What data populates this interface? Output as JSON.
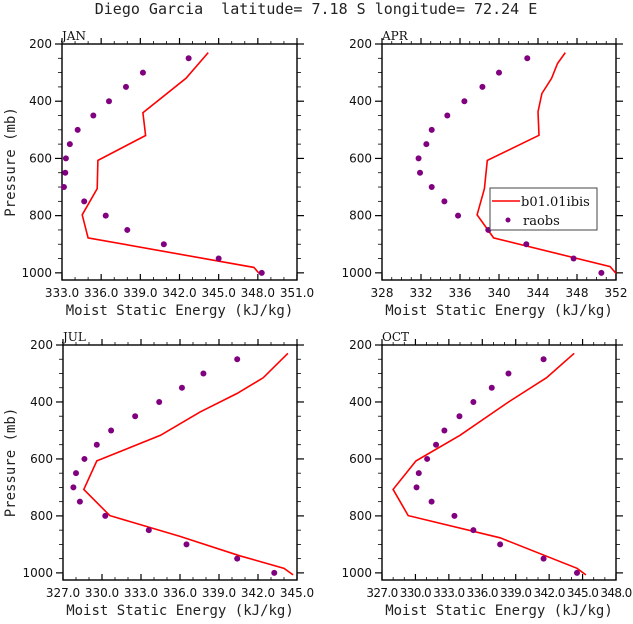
{
  "figure": {
    "title": "Diego Garcia  latitude= 7.18 S longitude= 72.24 E",
    "colors": {
      "model": "#ff0000",
      "obs": "#800080"
    }
  },
  "chart_data": [
    {
      "type": "line",
      "panel": "JAN",
      "title": "JAN",
      "xlabel": "Moist Static Energy (kJ/kg)",
      "ylabel": "Pressure (mb)",
      "xlim": [
        333.0,
        351.0
      ],
      "ylim": [
        1025,
        200
      ],
      "xticks": [
        333.0,
        336.0,
        339.0,
        342.0,
        345.0,
        348.0,
        351.0
      ],
      "xtick_labels": [
        "333.0",
        "336.0",
        "339.0",
        "342.0",
        "345.0",
        "348.0",
        "351.0"
      ],
      "xminor_step": 1.0,
      "yticks": [
        200,
        400,
        600,
        800,
        1000
      ],
      "ytick_labels": [
        "200",
        "400",
        "600",
        "800",
        "1000"
      ],
      "yminor_step": 50,
      "show_ylabel": true,
      "legend": null,
      "series": [
        {
          "name": "b01.01ibis",
          "kind": "line",
          "x": [
            344.2,
            342.5,
            339.2,
            339.4,
            335.75,
            335.7,
            334.55,
            335.0,
            347.7,
            348.1
          ],
          "y": [
            230,
            320,
            440,
            520,
            607,
            706,
            797,
            878,
            981,
            1002
          ]
        },
        {
          "name": "raobs",
          "kind": "points",
          "x": [
            342.7,
            339.2,
            337.9,
            336.6,
            335.4,
            334.2,
            333.6,
            333.3,
            333.25,
            333.15,
            334.7,
            336.35,
            338.0,
            340.8,
            345.0,
            348.3
          ],
          "y": [
            250,
            300,
            350,
            400,
            450,
            500,
            550,
            600,
            650,
            700,
            750,
            800,
            850,
            900,
            950,
            1000
          ]
        }
      ]
    },
    {
      "type": "line",
      "panel": "APR",
      "title": "APR",
      "xlabel": "Moist Static Energy (kJ/kg)",
      "ylabel": "",
      "xlim": [
        328,
        352
      ],
      "ylim": [
        1025,
        200
      ],
      "xticks": [
        328,
        332,
        336,
        340,
        344,
        348,
        352
      ],
      "xtick_labels": [
        "328",
        "332",
        "336",
        "340",
        "344",
        "348",
        "352"
      ],
      "xminor_step": 1,
      "yticks": [
        200,
        400,
        600,
        800,
        1000
      ],
      "ytick_labels": [
        "200",
        "400",
        "600",
        "800",
        "1000"
      ],
      "yminor_step": 50,
      "show_ylabel": false,
      "legend": {
        "position": "center-right",
        "entries": [
          "b01.01ibis",
          "raobs"
        ]
      },
      "series": [
        {
          "name": "b01.01ibis",
          "kind": "line",
          "x": [
            346.8,
            346.0,
            345.4,
            344.4,
            344.0,
            344.1,
            338.8,
            338.5,
            337.75,
            339.45,
            351.4,
            352.0
          ],
          "y": [
            230,
            268,
            320,
            373,
            437,
            519,
            607,
            706,
            797,
            878,
            978,
            1002
          ]
        },
        {
          "name": "raobs",
          "kind": "points",
          "x": [
            342.9,
            340.0,
            338.3,
            336.45,
            334.7,
            333.1,
            332.55,
            331.75,
            331.9,
            333.1,
            334.4,
            335.8,
            338.9,
            342.8,
            347.65,
            350.5
          ],
          "y": [
            250,
            300,
            350,
            400,
            450,
            500,
            550,
            600,
            650,
            700,
            750,
            800,
            850,
            900,
            950,
            1000
          ]
        }
      ]
    },
    {
      "type": "line",
      "panel": "JUL",
      "title": "JUL",
      "xlabel": "Moist Static Energy (kJ/kg)",
      "ylabel": "Pressure (mb)",
      "xlim": [
        327.0,
        345.0
      ],
      "ylim": [
        1025,
        200
      ],
      "xticks": [
        327.0,
        330.0,
        333.0,
        336.0,
        339.0,
        342.0,
        345.0
      ],
      "xtick_labels": [
        "327.0",
        "330.0",
        "333.0",
        "336.0",
        "339.0",
        "342.0",
        "345.0"
      ],
      "xminor_step": 1.0,
      "yticks": [
        200,
        400,
        600,
        800,
        1000
      ],
      "ytick_labels": [
        "200",
        "400",
        "600",
        "800",
        "1000"
      ],
      "yminor_step": 50,
      "show_ylabel": true,
      "legend": null,
      "series": [
        {
          "name": "b01.01ibis",
          "kind": "line",
          "x": [
            344.3,
            342.4,
            340.4,
            337.55,
            334.5,
            329.6,
            328.6,
            330.6,
            336.0,
            340.6,
            344.0,
            344.7
          ],
          "y": [
            229,
            315,
            370,
            435,
            517,
            607,
            707,
            799,
            872,
            940,
            984,
            1007
          ]
        },
        {
          "name": "raobs",
          "kind": "points",
          "x": [
            340.4,
            337.8,
            336.15,
            334.4,
            332.55,
            330.7,
            329.6,
            328.65,
            328.0,
            327.8,
            328.3,
            330.25,
            333.6,
            336.5,
            340.4,
            343.25
          ],
          "y": [
            250,
            300,
            350,
            400,
            450,
            500,
            550,
            600,
            650,
            700,
            750,
            800,
            850,
            900,
            950,
            1000
          ]
        }
      ]
    },
    {
      "type": "line",
      "panel": "OCT",
      "title": "OCT",
      "xlabel": "Moist Static Energy (kJ/kg)",
      "ylabel": "",
      "xlim": [
        327.0,
        348.0
      ],
      "ylim": [
        1025,
        200
      ],
      "xticks": [
        327.0,
        330.0,
        333.0,
        336.0,
        339.0,
        342.0,
        345.0,
        348.0
      ],
      "xtick_labels": [
        "327.0",
        "330.0",
        "333.0",
        "336.0",
        "339.0",
        "342.0",
        "345.0",
        "348.0"
      ],
      "xminor_step": 1.0,
      "yticks": [
        200,
        400,
        600,
        800,
        1000
      ],
      "ytick_labels": [
        "200",
        "400",
        "600",
        "800",
        "1000"
      ],
      "yminor_step": 50,
      "show_ylabel": false,
      "legend": null,
      "series": [
        {
          "name": "b01.01ibis",
          "kind": "line",
          "x": [
            344.25,
            341.75,
            338.35,
            334.0,
            330.05,
            328.0,
            329.35,
            337.6,
            344.5,
            345.3
          ],
          "y": [
            229,
            315,
            400,
            517,
            607,
            707,
            799,
            877,
            984,
            1007
          ]
        },
        {
          "name": "raobs",
          "kind": "points",
          "x": [
            341.5,
            338.35,
            336.85,
            335.2,
            333.95,
            332.6,
            331.85,
            331.05,
            330.3,
            330.1,
            331.45,
            333.5,
            335.2,
            337.6,
            341.5,
            344.5
          ],
          "y": [
            250,
            300,
            350,
            400,
            450,
            500,
            550,
            600,
            650,
            700,
            750,
            800,
            850,
            900,
            950,
            1000
          ]
        }
      ]
    }
  ]
}
